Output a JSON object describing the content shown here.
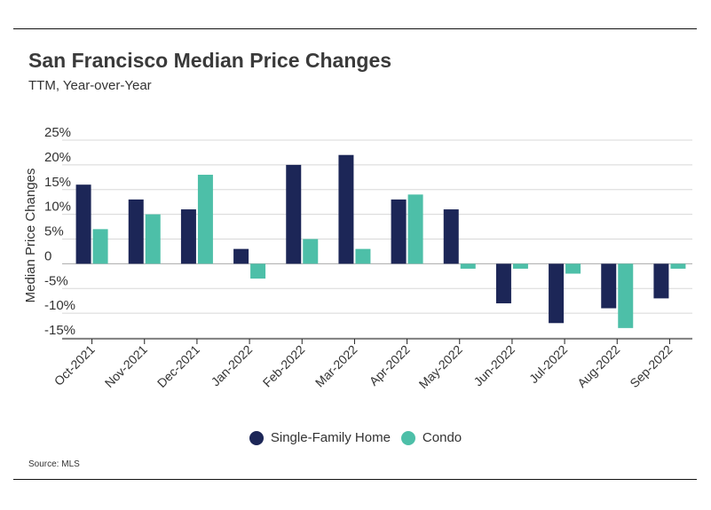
{
  "header": {
    "title": "San Francisco Median Price Changes",
    "subtitle": "TTM, Year-over-Year"
  },
  "footer": {
    "source": "Source:  MLS"
  },
  "colors": {
    "single_family": "#1c2657",
    "condo": "#4dbfa8",
    "grid": "#d8d8d8"
  },
  "chart_data": {
    "type": "bar",
    "title": "San Francisco Median Price Changes",
    "subtitle": "TTM, Year-over-Year",
    "xlabel": "",
    "ylabel": "Median Price Changes",
    "ylim": [
      -15,
      25
    ],
    "y_ticks": [
      25,
      20,
      15,
      10,
      5,
      0,
      -5,
      -10,
      -15
    ],
    "y_tick_labels": [
      "25%",
      "20%",
      "15%",
      "10%",
      "5%",
      "0",
      "-5%",
      "-10%",
      "-15%"
    ],
    "categories": [
      "Oct-2021",
      "Nov-2021",
      "Dec-2021",
      "Jan-2022",
      "Feb-2022",
      "Mar-2022",
      "Apr-2022",
      "May-2022",
      "Jun-2022",
      "Jul-2022",
      "Aug-2022",
      "Sep-2022"
    ],
    "series": [
      {
        "name": "Single-Family Home",
        "color": "#1c2657",
        "values": [
          16.0,
          13.0,
          11.0,
          3.0,
          20.0,
          22.0,
          13.0,
          11.0,
          -8.0,
          -12.0,
          -9.0,
          -7.0
        ]
      },
      {
        "name": "Condo",
        "color": "#4dbfa8",
        "values": [
          7.0,
          10.0,
          18.0,
          -3.0,
          5.0,
          3.0,
          14.0,
          -1.0,
          -1.0,
          -2.0,
          -13.0,
          -1.0
        ]
      }
    ],
    "grid": true,
    "legend_position": "bottom-center"
  }
}
